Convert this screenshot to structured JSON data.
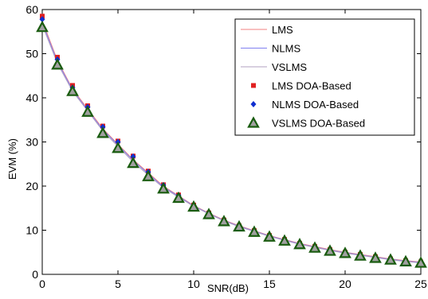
{
  "chart_data": {
    "type": "line",
    "title": "",
    "xlabel": "SNR(dB)",
    "ylabel": "EVM (%)",
    "xlim": [
      0,
      25
    ],
    "ylim": [
      0,
      60
    ],
    "xticks": [
      "0",
      "5",
      "10",
      "15",
      "20",
      "25"
    ],
    "yticks": [
      "0",
      "10",
      "20",
      "30",
      "40",
      "50",
      "60"
    ],
    "grid": false,
    "legend_position": "top-right",
    "x": [
      0,
      1,
      2,
      3,
      4,
      5,
      6,
      7,
      8,
      9,
      10,
      11,
      12,
      13,
      14,
      15,
      16,
      17,
      18,
      19,
      20,
      21,
      22,
      23,
      24,
      25
    ],
    "series": [
      {
        "name": "LMS",
        "style": "line",
        "color": "#f08080",
        "values": [
          57.5,
          48.5,
          42.0,
          37.5,
          33.0,
          29.5,
          26.0,
          23.0,
          20.0,
          17.8,
          15.6,
          13.9,
          12.3,
          11.0,
          9.9,
          8.8,
          7.9,
          7.0,
          6.3,
          5.6,
          5.0,
          4.5,
          4.0,
          3.5,
          3.1,
          2.8
        ]
      },
      {
        "name": "NLMS",
        "style": "line",
        "color": "#8080f0",
        "values": [
          57.0,
          48.2,
          41.8,
          37.2,
          32.8,
          29.3,
          25.8,
          22.8,
          19.8,
          17.7,
          15.5,
          13.8,
          12.2,
          10.9,
          9.8,
          8.7,
          7.8,
          6.9,
          6.2,
          5.5,
          4.9,
          4.4,
          3.9,
          3.4,
          3.0,
          2.7
        ]
      },
      {
        "name": "VSLMS",
        "style": "line",
        "color": "#b0a0c0",
        "values": [
          56.5,
          47.8,
          41.5,
          37.0,
          32.5,
          29.0,
          25.5,
          22.5,
          19.6,
          17.5,
          15.4,
          13.7,
          12.1,
          10.8,
          9.7,
          8.6,
          7.7,
          6.8,
          6.1,
          5.4,
          4.8,
          4.3,
          3.8,
          3.3,
          2.9,
          2.6
        ]
      },
      {
        "name": "LMS DOA-Based",
        "style": "marker-x",
        "color": "#e02020",
        "values": [
          58.5,
          49.2,
          42.8,
          38.2,
          33.6,
          30.2,
          26.8,
          23.4,
          20.3,
          18.0,
          15.7,
          13.9,
          12.3,
          11.0,
          9.9,
          8.8,
          7.9,
          7.0,
          6.3,
          5.6,
          5.0,
          4.5,
          4.0,
          3.5,
          3.1,
          2.8
        ]
      },
      {
        "name": "NLMS DOA-Based",
        "style": "marker-diamond",
        "color": "#1030d0",
        "values": [
          57.8,
          48.7,
          42.3,
          37.9,
          33.4,
          30.0,
          26.7,
          23.2,
          20.2,
          17.9,
          15.6,
          13.8,
          12.2,
          10.9,
          9.8,
          8.7,
          7.8,
          6.9,
          6.2,
          5.5,
          4.9,
          4.4,
          3.9,
          3.4,
          3.0,
          2.7
        ]
      },
      {
        "name": "VSLMS DOA-Based",
        "style": "marker-triangle",
        "color": "#1a5c10",
        "values": [
          56.0,
          47.5,
          41.5,
          36.8,
          32.0,
          28.6,
          25.2,
          22.2,
          19.4,
          17.3,
          15.3,
          13.6,
          12.0,
          10.8,
          9.6,
          8.5,
          7.6,
          6.8,
          6.0,
          5.3,
          4.8,
          4.2,
          3.7,
          3.3,
          2.9,
          2.6
        ]
      }
    ]
  }
}
